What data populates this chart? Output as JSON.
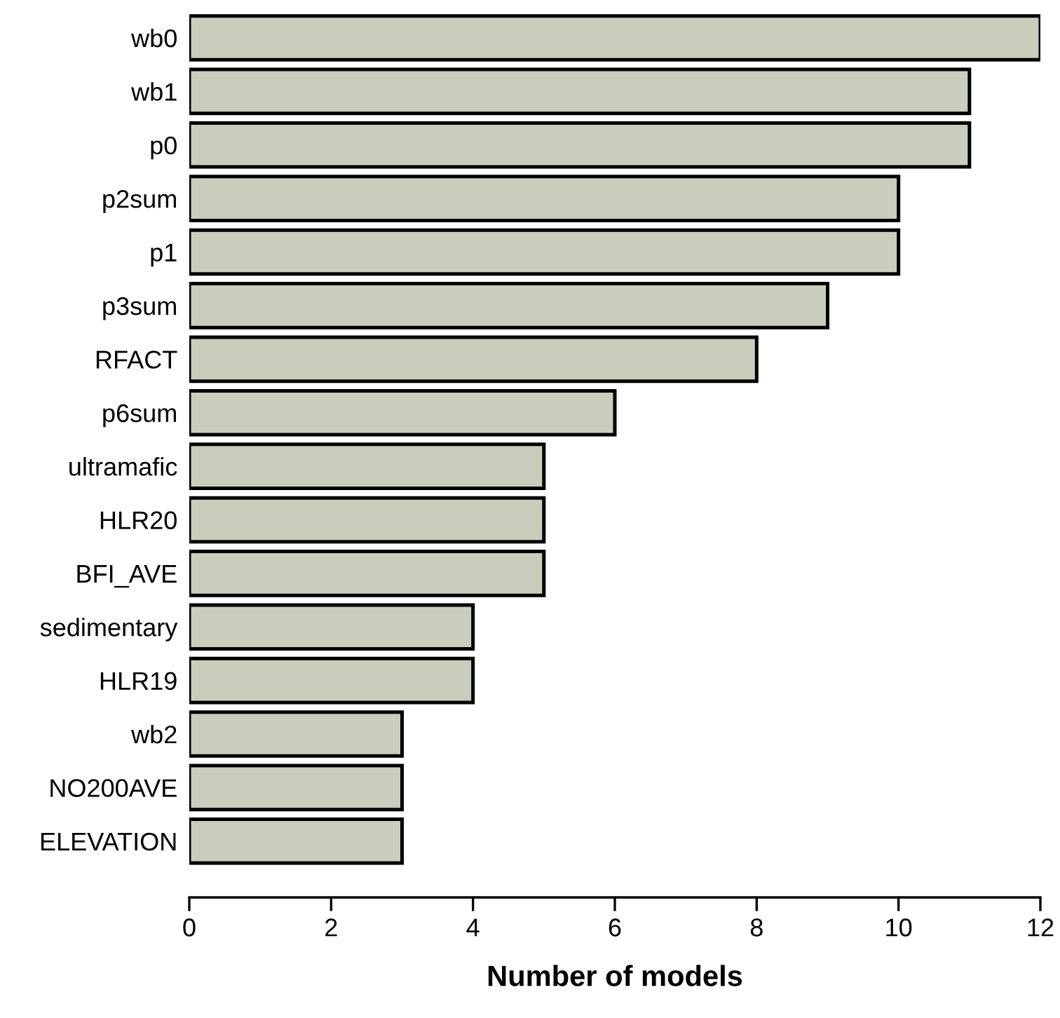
{
  "chart_data": {
    "type": "bar",
    "orientation": "horizontal",
    "xlabel": "Number of models",
    "categories": [
      "wb0",
      "wb1",
      "p0",
      "p2sum",
      "p1",
      "p3sum",
      "RFACT",
      "p6sum",
      "ultramafic",
      "HLR20",
      "BFI_AVE",
      "sedimentary",
      "HLR19",
      "wb2",
      "NO200AVE",
      "ELEVATION"
    ],
    "values": [
      12,
      11,
      11,
      10,
      10,
      9,
      8,
      6,
      5,
      5,
      5,
      4,
      4,
      3,
      3,
      3
    ],
    "color": "#c9cdbb",
    "xlim": [
      0,
      12
    ],
    "xticks": [
      0,
      2,
      4,
      6,
      8,
      10,
      12
    ],
    "grid": false
  }
}
